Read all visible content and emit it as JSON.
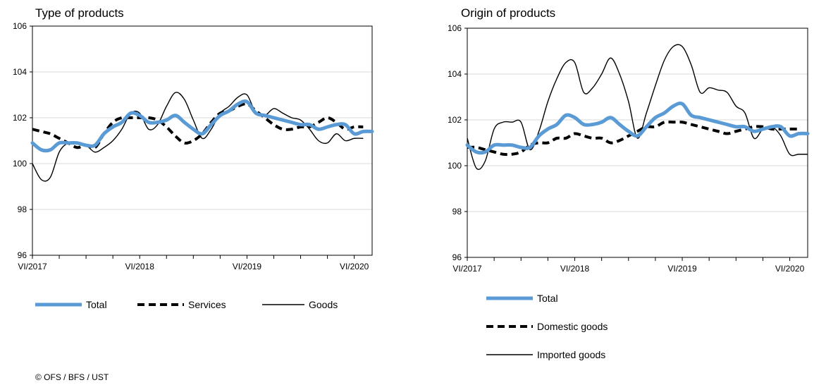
{
  "credit": "© OFS / BFS / UST",
  "chart_data": [
    {
      "type": "line",
      "title": "Type of products",
      "ylim": [
        96,
        106
      ],
      "yticks": [
        96,
        98,
        100,
        102,
        104,
        106
      ],
      "x_start": "VI/2017",
      "x_end": "VI/2020",
      "xtick_labels": [
        {
          "label": "VI/2017",
          "index": 0
        },
        {
          "label": "VI/2018",
          "index": 12
        },
        {
          "label": "VI/2019",
          "index": 24
        },
        {
          "label": "VI/2020",
          "index": 36
        }
      ],
      "grid": true,
      "series": [
        {
          "name": "Total",
          "style": "thick-blue",
          "color": "#5b9bd5",
          "values": [
            100.9,
            100.6,
            100.6,
            100.9,
            100.9,
            100.9,
            100.8,
            100.8,
            101.3,
            101.6,
            101.8,
            102.2,
            102.1,
            101.8,
            101.8,
            101.9,
            102.1,
            101.8,
            101.5,
            101.3,
            101.7,
            102.1,
            102.3,
            102.6,
            102.7,
            102.2,
            102.1,
            102.0,
            101.9,
            101.8,
            101.7,
            101.7,
            101.5,
            101.6,
            101.7,
            101.7,
            101.3,
            101.4,
            101.4
          ]
        },
        {
          "name": "Services",
          "style": "thick-dashed",
          "color": "#000000",
          "values": [
            101.5,
            101.4,
            101.3,
            101.1,
            100.9,
            100.7,
            100.8,
            100.7,
            101.3,
            101.8,
            102.0,
            102.0,
            102.0,
            102.0,
            101.9,
            101.6,
            101.2,
            100.9,
            101.0,
            101.3,
            101.8,
            102.2,
            102.3,
            102.5,
            102.6,
            102.3,
            102.0,
            101.7,
            101.5,
            101.5,
            101.6,
            101.6,
            101.8,
            102.0,
            101.8,
            101.5,
            101.6,
            101.6
          ]
        },
        {
          "name": "Goods",
          "style": "thin-solid",
          "color": "#000000",
          "values": [
            100.0,
            99.3,
            99.4,
            100.5,
            100.9,
            100.9,
            100.8,
            100.5,
            100.7,
            101.0,
            101.5,
            102.2,
            102.2,
            101.5,
            101.7,
            102.5,
            103.1,
            102.8,
            101.9,
            101.1,
            101.5,
            102.2,
            102.5,
            102.9,
            103.0,
            102.2,
            102.1,
            102.4,
            102.2,
            102.0,
            101.9,
            101.5,
            101.0,
            100.9,
            101.3,
            101.0,
            101.1,
            101.1
          ]
        }
      ]
    },
    {
      "type": "line",
      "title": "Origin of products",
      "ylim": [
        96,
        106
      ],
      "yticks": [
        96,
        98,
        100,
        102,
        104,
        106
      ],
      "x_start": "VI/2017",
      "x_end": "VI/2020",
      "xtick_labels": [
        {
          "label": "VI/2017",
          "index": 0
        },
        {
          "label": "VI/2018",
          "index": 12
        },
        {
          "label": "VI/2019",
          "index": 24
        },
        {
          "label": "VI/2020",
          "index": 36
        }
      ],
      "grid": true,
      "series": [
        {
          "name": "Total",
          "style": "thick-blue",
          "color": "#5b9bd5",
          "values": [
            100.9,
            100.6,
            100.6,
            100.9,
            100.9,
            100.9,
            100.8,
            100.8,
            101.3,
            101.6,
            101.8,
            102.2,
            102.1,
            101.8,
            101.8,
            101.9,
            102.1,
            101.8,
            101.5,
            101.3,
            101.7,
            102.1,
            102.3,
            102.6,
            102.7,
            102.2,
            102.1,
            102.0,
            101.9,
            101.8,
            101.7,
            101.7,
            101.5,
            101.6,
            101.7,
            101.7,
            101.3,
            101.4,
            101.4
          ]
        },
        {
          "name": "Domestic goods",
          "style": "thick-dashed",
          "color": "#000000",
          "values": [
            100.8,
            100.8,
            100.7,
            100.6,
            100.5,
            100.5,
            100.6,
            100.9,
            101.0,
            101.0,
            101.2,
            101.2,
            101.4,
            101.3,
            101.2,
            101.2,
            101.0,
            101.1,
            101.3,
            101.5,
            101.7,
            101.7,
            101.9,
            101.9,
            101.9,
            101.8,
            101.7,
            101.6,
            101.5,
            101.4,
            101.5,
            101.6,
            101.7,
            101.7,
            101.6,
            101.6,
            101.6,
            101.6
          ]
        },
        {
          "name": "Imported goods",
          "style": "thin-solid",
          "color": "#000000",
          "values": [
            101.2,
            99.9,
            100.2,
            101.6,
            101.9,
            101.9,
            101.9,
            100.7,
            101.5,
            102.8,
            103.8,
            104.5,
            104.5,
            103.2,
            103.4,
            104.0,
            104.7,
            104.0,
            102.8,
            101.2,
            102.3,
            103.5,
            104.6,
            105.2,
            105.2,
            104.4,
            103.2,
            103.4,
            103.3,
            103.2,
            102.6,
            102.3,
            101.2,
            101.6,
            101.7,
            101.3,
            100.5,
            100.5,
            100.5
          ]
        }
      ]
    }
  ]
}
